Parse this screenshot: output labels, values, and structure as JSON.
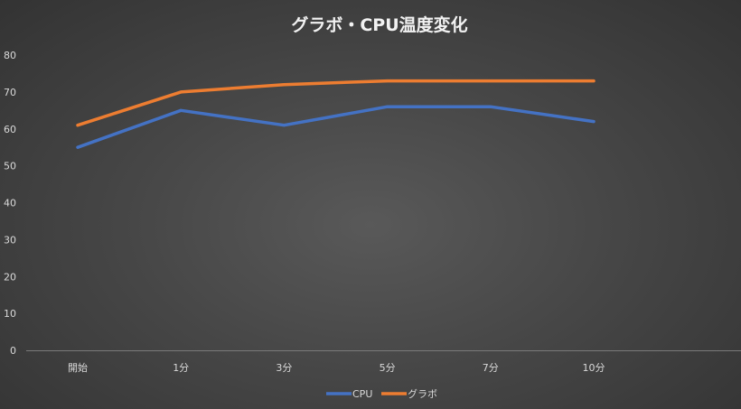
{
  "chart_data": {
    "type": "line",
    "title": "グラボ・CPU温度変化",
    "categories": [
      "開始",
      "1分",
      "3分",
      "5分",
      "7分",
      "10分"
    ],
    "series": [
      {
        "name": "CPU",
        "color": "#4472C4",
        "values": [
          55,
          65,
          61,
          66,
          66,
          62
        ]
      },
      {
        "name": "グラボ",
        "color": "#ED7D31",
        "values": [
          61,
          70,
          72,
          73,
          73,
          73
        ]
      }
    ],
    "yticks": [
      0,
      10,
      20,
      30,
      40,
      50,
      60,
      70,
      80
    ],
    "ylim": [
      0,
      80
    ],
    "xlabel": "",
    "ylabel": "",
    "grid": false,
    "legend_position": "bottom"
  }
}
